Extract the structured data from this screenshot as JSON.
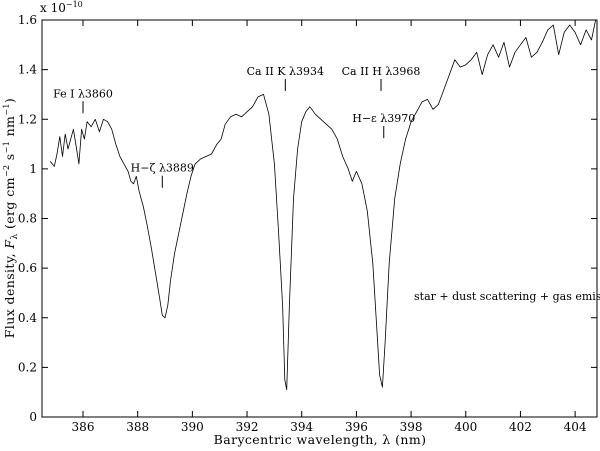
{
  "chart_data": {
    "type": "line",
    "title": "",
    "xlabel": "Barycentric wavelength, λ  (nm)",
    "ylabel": "Flux density, F_λ (erg cm⁻² s⁻¹ nm⁻¹)",
    "ylabel_parts": {
      "prefix": "Flux density, ",
      "symbol": "F",
      "symbol_sub": "λ",
      "units_open": " (erg cm",
      "exp1": "−2",
      "mid1": " s",
      "exp2": "−1",
      "mid2": " nm",
      "exp3": "−1",
      "units_close": ")"
    },
    "y_multiplier_base": "x 10",
    "y_multiplier_exp": "−10",
    "xlim": [
      384.5,
      404.8
    ],
    "ylim": [
      0,
      1.6
    ],
    "x_ticks": [
      386,
      388,
      390,
      392,
      394,
      396,
      398,
      400,
      402,
      404
    ],
    "y_ticks": [
      0,
      0.2,
      0.4,
      0.6,
      0.8,
      1,
      1.2,
      1.4,
      1.6
    ],
    "y_tick_labels": [
      "0",
      "0.2",
      "0.4",
      "0.6",
      "0.8",
      "1",
      "1.2",
      "1.4",
      "1.6"
    ],
    "grid": false,
    "legend": "none",
    "series": [
      {
        "x": [
          384.8,
          384.95,
          385.05,
          385.15,
          385.25,
          385.35,
          385.45,
          385.55,
          385.65,
          385.75,
          385.85,
          385.95,
          386.05,
          386.15,
          386.3,
          386.45,
          386.6,
          386.75,
          386.9,
          387.05,
          387.2,
          387.35,
          387.5,
          387.65,
          387.75,
          387.85,
          387.95,
          388.05,
          388.2,
          388.35,
          388.5,
          388.65,
          388.8,
          388.9,
          389.0,
          389.1,
          389.2,
          389.35,
          389.5,
          389.65,
          389.8,
          389.95,
          390.1,
          390.3,
          390.5,
          390.7,
          390.9,
          391.05,
          391.2,
          391.4,
          391.6,
          391.8,
          392.0,
          392.2,
          392.4,
          392.6,
          392.8,
          393.0,
          393.15,
          393.3,
          393.38,
          393.45,
          393.55,
          393.7,
          393.85,
          394.0,
          394.15,
          394.3,
          394.5,
          394.7,
          394.9,
          395.1,
          395.3,
          395.5,
          395.7,
          395.85,
          396.0,
          396.2,
          396.4,
          396.6,
          396.75,
          396.85,
          396.95,
          397.05,
          397.2,
          397.4,
          397.6,
          397.8,
          398.0,
          398.2,
          398.4,
          398.6,
          398.8,
          399.0,
          399.2,
          399.4,
          399.6,
          399.8,
          400.0,
          400.2,
          400.4,
          400.6,
          400.8,
          401.0,
          401.2,
          401.4,
          401.6,
          401.8,
          402.0,
          402.2,
          402.4,
          402.6,
          402.8,
          403.0,
          403.2,
          403.4,
          403.6,
          403.8,
          404.0,
          404.2,
          404.4,
          404.6,
          404.75
        ],
        "y": [
          1.03,
          1.01,
          1.06,
          1.13,
          1.05,
          1.14,
          1.08,
          1.12,
          1.16,
          1.09,
          1.02,
          1.16,
          1.12,
          1.19,
          1.17,
          1.2,
          1.15,
          1.2,
          1.19,
          1.16,
          1.1,
          1.05,
          1.02,
          0.99,
          0.95,
          0.94,
          0.97,
          0.91,
          0.85,
          0.77,
          0.68,
          0.58,
          0.48,
          0.41,
          0.4,
          0.45,
          0.55,
          0.66,
          0.74,
          0.82,
          0.9,
          0.97,
          1.02,
          1.04,
          1.05,
          1.06,
          1.1,
          1.12,
          1.18,
          1.21,
          1.22,
          1.21,
          1.23,
          1.25,
          1.29,
          1.3,
          1.22,
          1.02,
          0.75,
          0.45,
          0.15,
          0.11,
          0.45,
          0.88,
          1.08,
          1.19,
          1.23,
          1.25,
          1.22,
          1.2,
          1.18,
          1.16,
          1.12,
          1.05,
          1.0,
          0.95,
          0.99,
          0.94,
          0.83,
          0.62,
          0.35,
          0.17,
          0.12,
          0.3,
          0.62,
          0.88,
          1.02,
          1.12,
          1.19,
          1.23,
          1.27,
          1.28,
          1.24,
          1.26,
          1.32,
          1.38,
          1.44,
          1.41,
          1.42,
          1.44,
          1.47,
          1.38,
          1.46,
          1.5,
          1.45,
          1.51,
          1.41,
          1.47,
          1.5,
          1.53,
          1.45,
          1.47,
          1.51,
          1.56,
          1.58,
          1.46,
          1.55,
          1.58,
          1.55,
          1.5,
          1.56,
          1.52,
          1.6
        ]
      }
    ],
    "annotations": [
      {
        "label": "Fe I λ3860",
        "x": 386.0,
        "y": 1.2
      },
      {
        "label": "H−ζ λ3889",
        "x": 388.9,
        "y": 0.9
      },
      {
        "label": "Ca II K λ3934",
        "x": 393.4,
        "y": 1.29
      },
      {
        "label": "Ca II H λ3968",
        "x": 396.9,
        "y": 1.29
      },
      {
        "label": "H−ε λ3970",
        "x": 397.0,
        "y": 1.1
      }
    ],
    "inset_text": "star + dust scattering + gas emission"
  }
}
